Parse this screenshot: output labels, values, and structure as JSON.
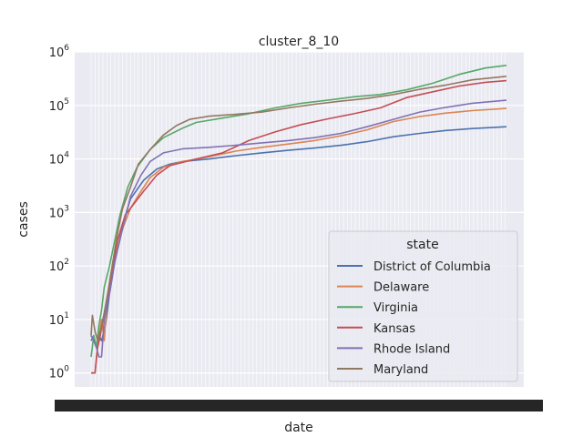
{
  "chart_data": {
    "type": "line",
    "title": "cluster_8_10",
    "xlabel": "date",
    "ylabel": "cases",
    "yscale": "log",
    "ylim": [
      0.55,
      1000000
    ],
    "x_range_days": [
      0,
      316
    ],
    "x_tick_labels_overlapping": true,
    "grid": true,
    "background_color": "#eaeaf2",
    "legend": {
      "title": "state",
      "placement": "lower right"
    },
    "y_tick_labels": [
      "10^0",
      "10^1",
      "10^2",
      "10^3",
      "10^4",
      "10^5",
      "10^6"
    ],
    "series": [
      {
        "name": "District of Columbia",
        "color": "#4c72b0",
        "points": [
          [
            0,
            4
          ],
          [
            2,
            5
          ],
          [
            4,
            3
          ],
          [
            6,
            5
          ],
          [
            8,
            4
          ],
          [
            11,
            8
          ],
          [
            14,
            30
          ],
          [
            18,
            120
          ],
          [
            24,
            600
          ],
          [
            30,
            1800
          ],
          [
            40,
            4000
          ],
          [
            50,
            6500
          ],
          [
            60,
            8000
          ],
          [
            70,
            9000
          ],
          [
            90,
            10000
          ],
          [
            110,
            11500
          ],
          [
            130,
            13000
          ],
          [
            150,
            14500
          ],
          [
            170,
            16000
          ],
          [
            190,
            18000
          ],
          [
            210,
            21000
          ],
          [
            230,
            26000
          ],
          [
            250,
            30000
          ],
          [
            270,
            34000
          ],
          [
            290,
            37000
          ],
          [
            316,
            40000
          ]
        ]
      },
      {
        "name": "Delaware",
        "color": "#dd8452",
        "points": [
          [
            0,
            1
          ],
          [
            1,
            1
          ],
          [
            2,
            1
          ],
          [
            3,
            1
          ],
          [
            4,
            2
          ],
          [
            6,
            5
          ],
          [
            8,
            10
          ],
          [
            10,
            4
          ],
          [
            12,
            20
          ],
          [
            15,
            60
          ],
          [
            18,
            150
          ],
          [
            24,
            500
          ],
          [
            30,
            1200
          ],
          [
            38,
            2500
          ],
          [
            45,
            4500
          ],
          [
            55,
            7000
          ],
          [
            70,
            9000
          ],
          [
            90,
            11000
          ],
          [
            110,
            14000
          ],
          [
            130,
            16500
          ],
          [
            150,
            19000
          ],
          [
            170,
            22000
          ],
          [
            190,
            27000
          ],
          [
            210,
            35000
          ],
          [
            230,
            50000
          ],
          [
            250,
            62000
          ],
          [
            270,
            72000
          ],
          [
            290,
            80000
          ],
          [
            316,
            88000
          ]
        ]
      },
      {
        "name": "Virginia",
        "color": "#55a868",
        "points": [
          [
            0,
            2
          ],
          [
            2,
            5
          ],
          [
            4,
            3
          ],
          [
            6,
            8
          ],
          [
            8,
            15
          ],
          [
            10,
            40
          ],
          [
            14,
            100
          ],
          [
            18,
            300
          ],
          [
            22,
            900
          ],
          [
            28,
            3000
          ],
          [
            35,
            7000
          ],
          [
            45,
            15000
          ],
          [
            55,
            25000
          ],
          [
            70,
            38000
          ],
          [
            80,
            48000
          ],
          [
            100,
            58000
          ],
          [
            120,
            70000
          ],
          [
            140,
            90000
          ],
          [
            160,
            110000
          ],
          [
            180,
            125000
          ],
          [
            200,
            145000
          ],
          [
            220,
            160000
          ],
          [
            240,
            195000
          ],
          [
            260,
            260000
          ],
          [
            280,
            380000
          ],
          [
            300,
            500000
          ],
          [
            316,
            560000
          ]
        ]
      },
      {
        "name": "Kansas",
        "color": "#c44e52",
        "points": [
          [
            0,
            1
          ],
          [
            1,
            1
          ],
          [
            2,
            1
          ],
          [
            3,
            1
          ],
          [
            5,
            3
          ],
          [
            7,
            5
          ],
          [
            9,
            10
          ],
          [
            12,
            20
          ],
          [
            16,
            80
          ],
          [
            20,
            300
          ],
          [
            26,
            900
          ],
          [
            30,
            1200
          ],
          [
            40,
            2500
          ],
          [
            50,
            5000
          ],
          [
            60,
            7500
          ],
          [
            80,
            10000
          ],
          [
            100,
            13000
          ],
          [
            120,
            22000
          ],
          [
            140,
            32000
          ],
          [
            160,
            44000
          ],
          [
            180,
            56000
          ],
          [
            200,
            70000
          ],
          [
            220,
            90000
          ],
          [
            240,
            140000
          ],
          [
            260,
            180000
          ],
          [
            280,
            230000
          ],
          [
            300,
            270000
          ],
          [
            316,
            290000
          ]
        ]
      },
      {
        "name": "Rhode Island",
        "color": "#8172b3",
        "points": [
          [
            0,
            5
          ],
          [
            2,
            4
          ],
          [
            4,
            3
          ],
          [
            6,
            2
          ],
          [
            8,
            2
          ],
          [
            10,
            10
          ],
          [
            14,
            30
          ],
          [
            18,
            120
          ],
          [
            24,
            500
          ],
          [
            30,
            2000
          ],
          [
            38,
            5000
          ],
          [
            45,
            9000
          ],
          [
            55,
            13000
          ],
          [
            70,
            15500
          ],
          [
            90,
            16500
          ],
          [
            110,
            18000
          ],
          [
            130,
            20000
          ],
          [
            150,
            22000
          ],
          [
            170,
            25000
          ],
          [
            190,
            30000
          ],
          [
            210,
            40000
          ],
          [
            230,
            55000
          ],
          [
            250,
            75000
          ],
          [
            270,
            92000
          ],
          [
            290,
            110000
          ],
          [
            316,
            125000
          ]
        ]
      },
      {
        "name": "Maryland",
        "color": "#937860",
        "points": [
          [
            0,
            5
          ],
          [
            1,
            12
          ],
          [
            3,
            6
          ],
          [
            5,
            4
          ],
          [
            7,
            6
          ],
          [
            9,
            10
          ],
          [
            12,
            25
          ],
          [
            16,
            100
          ],
          [
            20,
            400
          ],
          [
            24,
            1200
          ],
          [
            30,
            3000
          ],
          [
            36,
            8000
          ],
          [
            45,
            15000
          ],
          [
            55,
            28000
          ],
          [
            65,
            42000
          ],
          [
            75,
            55000
          ],
          [
            90,
            63000
          ],
          [
            110,
            68000
          ],
          [
            130,
            75000
          ],
          [
            150,
            90000
          ],
          [
            170,
            105000
          ],
          [
            190,
            120000
          ],
          [
            210,
            135000
          ],
          [
            230,
            160000
          ],
          [
            250,
            200000
          ],
          [
            270,
            240000
          ],
          [
            290,
            300000
          ],
          [
            316,
            350000
          ]
        ]
      }
    ]
  }
}
